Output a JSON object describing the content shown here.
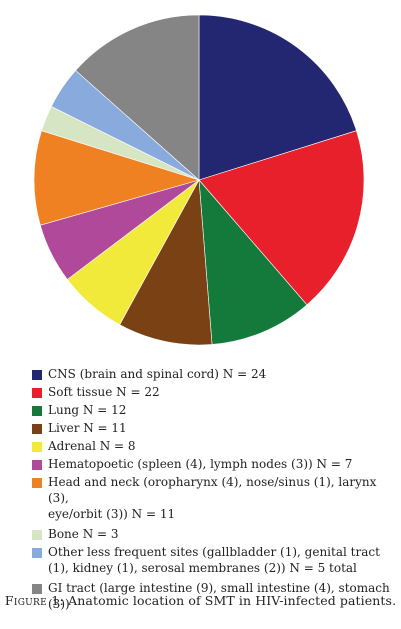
{
  "chart_data": {
    "type": "pie",
    "series": [
      {
        "label": "CNS (brain and spinal cord) N = 24",
        "value": 24,
        "color": "#232670"
      },
      {
        "label": "Soft tissue N = 22",
        "value": 22,
        "color": "#e8202b"
      },
      {
        "label": "Lung N = 12",
        "value": 12,
        "color": "#137a3c"
      },
      {
        "label": "Liver N = 11",
        "value": 11,
        "color": "#7a4214"
      },
      {
        "label": "Adrenal N = 8",
        "value": 8,
        "color": "#f2ea3b"
      },
      {
        "label": "Hematopoetic (spleen (4), lymph nodes (3)) N = 7",
        "value": 7,
        "color": "#b1499a"
      },
      {
        "label": "Head and neck (oropharynx (4), nose/sinus (1), larynx (3),\neye/orbit (3)) N = 11",
        "value": 11,
        "color": "#f08123"
      },
      {
        "label": "Bone N = 3",
        "value": 3,
        "color": "#d6e6c4"
      },
      {
        "label": "Other less frequent sites (gallbladder (1), genital tract\n(1), kidney (1), serosal membranes (2)) N = 5 total",
        "value": 5,
        "color": "#88aadd"
      },
      {
        "label": "GI tract (large intestine (9), small intestine (4), stomach (3))",
        "value": 16,
        "color": "#858585"
      }
    ]
  },
  "caption": {
    "figure_label": "Figure 1:",
    "text": " Anatomic location of SMT in HIV-infected patients."
  }
}
